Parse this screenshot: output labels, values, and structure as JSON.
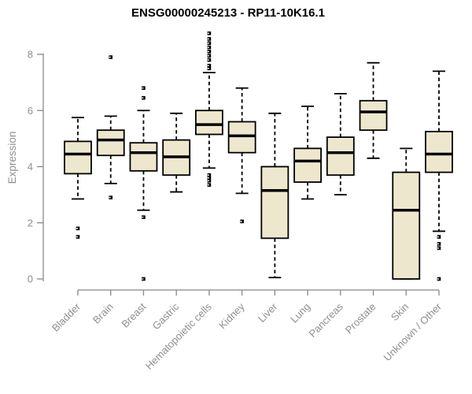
{
  "window": {
    "background_color": "#ffffff"
  },
  "chart_data": {
    "type": "boxplot",
    "title": "ENSG00000245213 - RP11-10K16.1",
    "xlabel": "",
    "ylabel": "Expression",
    "ylim": [
      0,
      8.8
    ],
    "yticks": [
      0,
      2,
      4,
      6,
      8
    ],
    "grid": false,
    "legend": "none",
    "categories": [
      "Bladder",
      "Brain",
      "Breast",
      "Gastric",
      "Hematopoietic cells",
      "Kidney",
      "Liver",
      "Lung",
      "Pancreas",
      "Prostate",
      "Skin",
      "Unknown / Other"
    ],
    "series": [
      {
        "name": "Bladder",
        "whisker_low": 2.85,
        "q1": 3.75,
        "median": 4.45,
        "q3": 4.9,
        "whisker_high": 5.75,
        "outliers": [
          1.8,
          1.5
        ]
      },
      {
        "name": "Brain",
        "whisker_low": 3.4,
        "q1": 4.4,
        "median": 4.95,
        "q3": 5.3,
        "whisker_high": 5.8,
        "outliers": [
          7.9,
          2.9
        ]
      },
      {
        "name": "Breast",
        "whisker_low": 2.45,
        "q1": 3.85,
        "median": 4.5,
        "q3": 4.85,
        "whisker_high": 6.0,
        "outliers": [
          6.8,
          6.45,
          2.2,
          0.0
        ]
      },
      {
        "name": "Gastric",
        "whisker_low": 3.1,
        "q1": 3.7,
        "median": 4.35,
        "q3": 4.95,
        "whisker_high": 5.9,
        "outliers": []
      },
      {
        "name": "Hematopoietic cells",
        "whisker_low": 3.95,
        "q1": 5.15,
        "median": 5.5,
        "q3": 6.0,
        "whisker_high": 7.35,
        "outliers": [
          8.75,
          8.55,
          8.4,
          8.25,
          8.1,
          7.95,
          7.8,
          7.6,
          7.5,
          3.7,
          3.6,
          3.5,
          3.35
        ]
      },
      {
        "name": "Kidney",
        "whisker_low": 3.05,
        "q1": 4.5,
        "median": 5.1,
        "q3": 5.6,
        "whisker_high": 6.8,
        "outliers": [
          2.05
        ]
      },
      {
        "name": "Liver",
        "whisker_low": 0.05,
        "q1": 1.45,
        "median": 3.15,
        "q3": 4.0,
        "whisker_high": 5.9,
        "outliers": []
      },
      {
        "name": "Lung",
        "whisker_low": 2.85,
        "q1": 3.45,
        "median": 4.2,
        "q3": 4.65,
        "whisker_high": 6.15,
        "outliers": []
      },
      {
        "name": "Pancreas",
        "whisker_low": 3.0,
        "q1": 3.7,
        "median": 4.5,
        "q3": 5.05,
        "whisker_high": 6.6,
        "outliers": []
      },
      {
        "name": "Prostate",
        "whisker_low": 4.3,
        "q1": 5.3,
        "median": 5.95,
        "q3": 6.35,
        "whisker_high": 7.7,
        "outliers": []
      },
      {
        "name": "Skin",
        "whisker_low": 0.0,
        "q1": 0.0,
        "median": 2.45,
        "q3": 3.8,
        "whisker_high": 4.65,
        "outliers": []
      },
      {
        "name": "Unknown / Other",
        "whisker_low": 1.7,
        "q1": 3.8,
        "median": 4.45,
        "q3": 5.25,
        "whisker_high": 7.4,
        "outliers": [
          1.5,
          1.25,
          1.1,
          0.0
        ]
      }
    ],
    "colors": {
      "box_fill": "#ede8cd",
      "box_stroke": "#000000",
      "median": "#000000",
      "whisker": "#000000",
      "outlier": "#000000",
      "axis": "#888888",
      "tick_label": "#8f8f8f",
      "title": "#000000",
      "background": "#ffffff"
    }
  }
}
